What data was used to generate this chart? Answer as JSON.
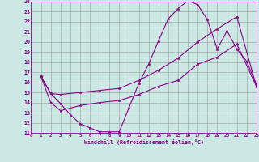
{
  "xlabel": "Windchill (Refroidissement éolien,°C)",
  "bg_color": "#cce8e4",
  "grid_color": "#999999",
  "line_color": "#880088",
  "xlim": [
    0,
    23
  ],
  "ylim": [
    11,
    24
  ],
  "xticks": [
    0,
    1,
    2,
    3,
    4,
    5,
    6,
    7,
    8,
    9,
    10,
    11,
    12,
    13,
    14,
    15,
    16,
    17,
    18,
    19,
    20,
    21,
    22,
    23
  ],
  "yticks": [
    11,
    12,
    13,
    14,
    15,
    16,
    17,
    18,
    19,
    20,
    21,
    22,
    23,
    24
  ],
  "curve1_x": [
    1,
    2,
    3,
    4,
    5,
    6,
    7,
    8,
    9,
    10,
    11,
    12,
    13,
    14,
    15,
    16,
    17,
    18,
    19,
    20,
    21,
    22,
    23
  ],
  "curve1_y": [
    16.6,
    14.9,
    13.9,
    12.8,
    11.9,
    11.5,
    11.1,
    11.1,
    11.1,
    13.5,
    15.9,
    17.8,
    20.1,
    22.3,
    23.3,
    24.1,
    23.7,
    22.2,
    19.3,
    21.1,
    19.3,
    18.1,
    15.8
  ],
  "curve2_x": [
    1,
    2,
    3,
    5,
    7,
    9,
    11,
    13,
    15,
    17,
    19,
    21,
    23
  ],
  "curve2_y": [
    16.6,
    14.9,
    14.8,
    15.0,
    15.2,
    15.4,
    16.2,
    17.2,
    18.4,
    20.0,
    21.3,
    22.5,
    15.6
  ],
  "curve3_x": [
    1,
    2,
    3,
    5,
    7,
    9,
    11,
    13,
    15,
    17,
    19,
    21,
    23
  ],
  "curve3_y": [
    16.6,
    14.0,
    13.2,
    13.7,
    14.0,
    14.2,
    14.8,
    15.6,
    16.2,
    17.8,
    18.5,
    19.8,
    15.6
  ]
}
